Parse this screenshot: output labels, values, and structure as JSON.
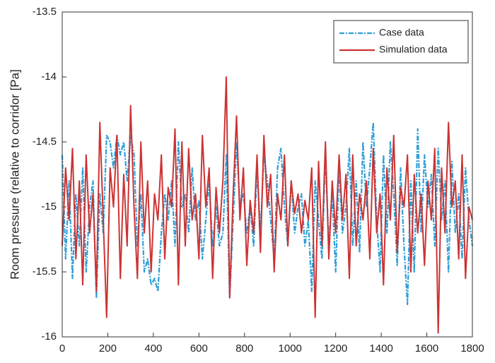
{
  "chart_data": {
    "type": "line",
    "ylabel": "Room pressure (relative to corridor [Pa]",
    "x": [
      0,
      15,
      30,
      45,
      60,
      75,
      90,
      105,
      120,
      135,
      150,
      165,
      180,
      195,
      210,
      225,
      240,
      255,
      270,
      285,
      300,
      315,
      330,
      345,
      360,
      375,
      390,
      405,
      420,
      435,
      450,
      465,
      480,
      495,
      510,
      525,
      540,
      555,
      570,
      585,
      600,
      615,
      630,
      645,
      660,
      675,
      690,
      705,
      720,
      735,
      750,
      765,
      780,
      795,
      810,
      825,
      840,
      855,
      870,
      885,
      900,
      915,
      930,
      945,
      960,
      975,
      990,
      1005,
      1020,
      1035,
      1050,
      1065,
      1080,
      1095,
      1110,
      1125,
      1140,
      1155,
      1170,
      1185,
      1200,
      1215,
      1230,
      1245,
      1260,
      1275,
      1290,
      1305,
      1320,
      1335,
      1350,
      1365,
      1380,
      1395,
      1410,
      1425,
      1440,
      1455,
      1470,
      1485,
      1500,
      1515,
      1530,
      1545,
      1560,
      1575,
      1590,
      1605,
      1620,
      1635,
      1650,
      1665,
      1680,
      1695,
      1710,
      1725,
      1740,
      1755,
      1770,
      1785,
      1800
    ],
    "series": [
      {
        "name": "Case data",
        "color": "#2e9fd8",
        "dash": true,
        "values": [
          -14.6,
          -15.4,
          -14.8,
          -15.55,
          -14.9,
          -15.3,
          -14.7,
          -15.5,
          -15.0,
          -14.8,
          -15.7,
          -14.9,
          -15.2,
          -14.45,
          -14.5,
          -14.7,
          -14.45,
          -14.6,
          -14.5,
          -14.8,
          -14.45,
          -14.6,
          -15.3,
          -14.9,
          -15.5,
          -15.4,
          -15.6,
          -15.55,
          -15.65,
          -15.2,
          -14.9,
          -15.1,
          -14.8,
          -15.3,
          -14.5,
          -15.0,
          -14.9,
          -15.2,
          -14.7,
          -15.1,
          -14.95,
          -15.4,
          -15.1,
          -14.8,
          -15.3,
          -15.0,
          -15.3,
          -15.2,
          -14.6,
          -15.7,
          -15.1,
          -14.5,
          -15.0,
          -14.9,
          -15.2,
          -15.0,
          -15.3,
          -14.7,
          -15.2,
          -14.6,
          -14.8,
          -15.1,
          -15.4,
          -14.7,
          -14.55,
          -15.0,
          -15.3,
          -14.8,
          -15.2,
          -15.0,
          -14.9,
          -15.3,
          -15.1,
          -15.65,
          -14.8,
          -15.1,
          -15.4,
          -14.6,
          -15.3,
          -14.9,
          -15.5,
          -14.7,
          -15.2,
          -15.0,
          -14.55,
          -15.3,
          -14.8,
          -15.35,
          -14.5,
          -15.0,
          -14.7,
          -14.35,
          -15.1,
          -15.5,
          -14.6,
          -15.2,
          -14.5,
          -14.9,
          -15.45,
          -14.7,
          -15.3,
          -15.75,
          -14.8,
          -15.5,
          -14.4,
          -15.2,
          -14.6,
          -15.0,
          -14.75,
          -15.3,
          -14.55,
          -15.1,
          -14.8,
          -15.5,
          -14.65,
          -15.2,
          -14.9,
          -15.4,
          -14.7,
          -15.1,
          -15.3
        ]
      },
      {
        "name": "Simulation data",
        "color": "#cc3333",
        "dash": false,
        "values": [
          -15.3,
          -14.7,
          -15.1,
          -14.55,
          -15.4,
          -14.8,
          -15.6,
          -14.6,
          -15.2,
          -14.9,
          -15.65,
          -14.35,
          -15.1,
          -15.85,
          -14.7,
          -15.0,
          -14.45,
          -15.55,
          -14.75,
          -15.3,
          -14.22,
          -15.0,
          -15.55,
          -14.5,
          -15.2,
          -14.8,
          -15.5,
          -14.9,
          -15.1,
          -14.6,
          -15.4,
          -14.85,
          -15.0,
          -14.4,
          -15.6,
          -14.5,
          -15.3,
          -14.55,
          -15.1,
          -14.9,
          -15.4,
          -14.45,
          -15.0,
          -14.7,
          -15.55,
          -14.85,
          -15.2,
          -14.8,
          -14.0,
          -15.7,
          -14.9,
          -14.3,
          -15.1,
          -14.7,
          -15.45,
          -14.95,
          -15.2,
          -14.6,
          -15.35,
          -14.45,
          -15.0,
          -14.75,
          -15.5,
          -14.9,
          -15.1,
          -14.6,
          -15.3,
          -14.8,
          -15.05,
          -14.9,
          -15.2,
          -14.95,
          -15.1,
          -14.7,
          -15.85,
          -14.65,
          -15.3,
          -14.5,
          -15.4,
          -14.8,
          -15.2,
          -14.6,
          -15.1,
          -14.75,
          -15.55,
          -14.6,
          -15.3,
          -14.9,
          -15.1,
          -14.8,
          -15.4,
          -14.55,
          -15.2,
          -14.9,
          -15.6,
          -14.7,
          -15.1,
          -14.45,
          -15.35,
          -14.85,
          -15.0,
          -14.6,
          -15.5,
          -14.75,
          -15.2,
          -14.9,
          -15.45,
          -14.8,
          -15.1,
          -14.55,
          -15.97,
          -14.7,
          -15.2,
          -14.35,
          -15.0,
          -14.8,
          -15.4,
          -14.6,
          -15.55,
          -15.0,
          -15.1
        ]
      }
    ],
    "xlim": [
      0,
      1800
    ],
    "xticks": [
      0,
      200,
      400,
      600,
      800,
      1000,
      1200,
      1400,
      1600,
      1800
    ],
    "ylim": [
      -16,
      -13.5
    ],
    "yticks": [
      -16,
      -15.5,
      -15,
      -14.5,
      -14,
      -13.5
    ],
    "grid": false,
    "legend": "upper right"
  }
}
